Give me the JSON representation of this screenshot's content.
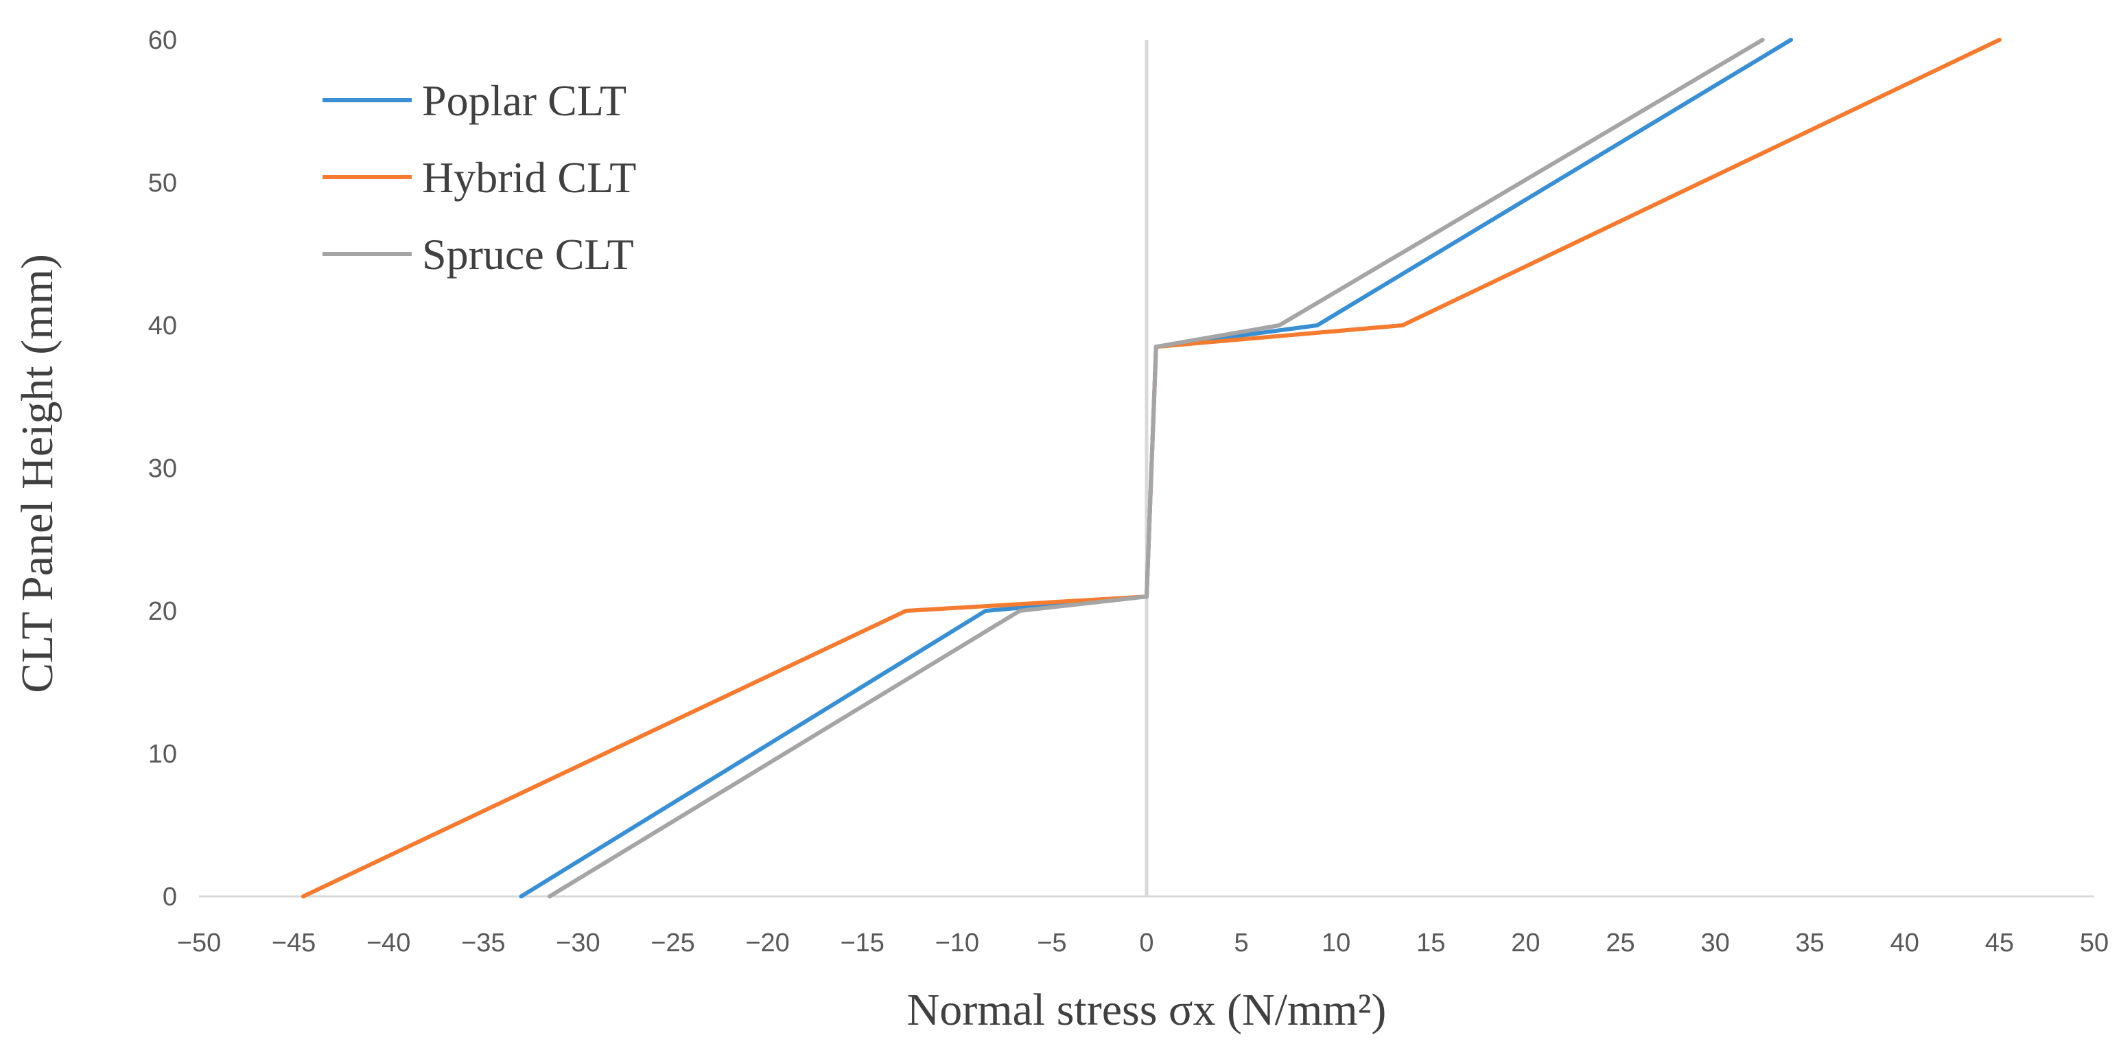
{
  "chart_data": {
    "type": "line",
    "xlabel": "Normal stress σx (N/mm²)",
    "ylabel": "CLT Panel Height (mm)",
    "xlim": [
      -50,
      50
    ],
    "ylim": [
      0,
      60
    ],
    "x_ticks": [
      -50,
      -45,
      -40,
      -35,
      -30,
      -25,
      -20,
      -15,
      -10,
      -5,
      0,
      5,
      10,
      15,
      20,
      25,
      30,
      35,
      40,
      45,
      50
    ],
    "y_ticks": [
      0,
      10,
      20,
      30,
      40,
      50,
      60
    ],
    "legend_position": "top-left",
    "grid": false,
    "series": [
      {
        "name": "Poplar CLT",
        "color": "#3A8FD3",
        "points": [
          [
            -33,
            0
          ],
          [
            -8.5,
            20
          ],
          [
            0,
            21
          ],
          [
            0.5,
            38.5
          ],
          [
            9,
            40
          ],
          [
            34,
            60
          ]
        ]
      },
      {
        "name": "Hybrid CLT",
        "color": "#F47B30",
        "points": [
          [
            -44.5,
            0
          ],
          [
            -12.7,
            20
          ],
          [
            0,
            21
          ],
          [
            0.5,
            38.5
          ],
          [
            13.5,
            40
          ],
          [
            45,
            60
          ]
        ]
      },
      {
        "name": "Spruce CLT",
        "color": "#A5A5A5",
        "points": [
          [
            -31.5,
            0
          ],
          [
            -6.7,
            20
          ],
          [
            0,
            21
          ],
          [
            0.5,
            38.5
          ],
          [
            7,
            40
          ],
          [
            32.5,
            60
          ]
        ]
      }
    ]
  }
}
